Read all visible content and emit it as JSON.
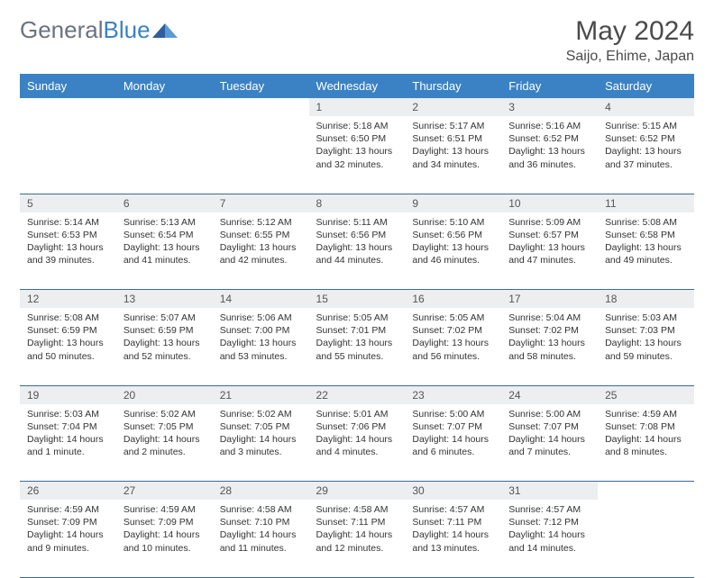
{
  "logo": {
    "text_gray": "General",
    "text_blue": "Blue"
  },
  "title": "May 2024",
  "location": "Saijo, Ehime, Japan",
  "colors": {
    "header_bg": "#3b82c4",
    "header_text": "#ffffff",
    "daynum_bg": "#eceef0",
    "border": "#3b6aa0",
    "body_text": "#333333",
    "logo_gray": "#6b7280",
    "logo_blue": "#3b82c4",
    "page_bg": "#ffffff"
  },
  "day_headers": [
    "Sunday",
    "Monday",
    "Tuesday",
    "Wednesday",
    "Thursday",
    "Friday",
    "Saturday"
  ],
  "weeks": [
    {
      "nums": [
        "",
        "",
        "",
        "1",
        "2",
        "3",
        "4"
      ],
      "cells": [
        null,
        null,
        null,
        {
          "sunrise": "Sunrise: 5:18 AM",
          "sunset": "Sunset: 6:50 PM",
          "day1": "Daylight: 13 hours",
          "day2": "and 32 minutes."
        },
        {
          "sunrise": "Sunrise: 5:17 AM",
          "sunset": "Sunset: 6:51 PM",
          "day1": "Daylight: 13 hours",
          "day2": "and 34 minutes."
        },
        {
          "sunrise": "Sunrise: 5:16 AM",
          "sunset": "Sunset: 6:52 PM",
          "day1": "Daylight: 13 hours",
          "day2": "and 36 minutes."
        },
        {
          "sunrise": "Sunrise: 5:15 AM",
          "sunset": "Sunset: 6:52 PM",
          "day1": "Daylight: 13 hours",
          "day2": "and 37 minutes."
        }
      ]
    },
    {
      "nums": [
        "5",
        "6",
        "7",
        "8",
        "9",
        "10",
        "11"
      ],
      "cells": [
        {
          "sunrise": "Sunrise: 5:14 AM",
          "sunset": "Sunset: 6:53 PM",
          "day1": "Daylight: 13 hours",
          "day2": "and 39 minutes."
        },
        {
          "sunrise": "Sunrise: 5:13 AM",
          "sunset": "Sunset: 6:54 PM",
          "day1": "Daylight: 13 hours",
          "day2": "and 41 minutes."
        },
        {
          "sunrise": "Sunrise: 5:12 AM",
          "sunset": "Sunset: 6:55 PM",
          "day1": "Daylight: 13 hours",
          "day2": "and 42 minutes."
        },
        {
          "sunrise": "Sunrise: 5:11 AM",
          "sunset": "Sunset: 6:56 PM",
          "day1": "Daylight: 13 hours",
          "day2": "and 44 minutes."
        },
        {
          "sunrise": "Sunrise: 5:10 AM",
          "sunset": "Sunset: 6:56 PM",
          "day1": "Daylight: 13 hours",
          "day2": "and 46 minutes."
        },
        {
          "sunrise": "Sunrise: 5:09 AM",
          "sunset": "Sunset: 6:57 PM",
          "day1": "Daylight: 13 hours",
          "day2": "and 47 minutes."
        },
        {
          "sunrise": "Sunrise: 5:08 AM",
          "sunset": "Sunset: 6:58 PM",
          "day1": "Daylight: 13 hours",
          "day2": "and 49 minutes."
        }
      ]
    },
    {
      "nums": [
        "12",
        "13",
        "14",
        "15",
        "16",
        "17",
        "18"
      ],
      "cells": [
        {
          "sunrise": "Sunrise: 5:08 AM",
          "sunset": "Sunset: 6:59 PM",
          "day1": "Daylight: 13 hours",
          "day2": "and 50 minutes."
        },
        {
          "sunrise": "Sunrise: 5:07 AM",
          "sunset": "Sunset: 6:59 PM",
          "day1": "Daylight: 13 hours",
          "day2": "and 52 minutes."
        },
        {
          "sunrise": "Sunrise: 5:06 AM",
          "sunset": "Sunset: 7:00 PM",
          "day1": "Daylight: 13 hours",
          "day2": "and 53 minutes."
        },
        {
          "sunrise": "Sunrise: 5:05 AM",
          "sunset": "Sunset: 7:01 PM",
          "day1": "Daylight: 13 hours",
          "day2": "and 55 minutes."
        },
        {
          "sunrise": "Sunrise: 5:05 AM",
          "sunset": "Sunset: 7:02 PM",
          "day1": "Daylight: 13 hours",
          "day2": "and 56 minutes."
        },
        {
          "sunrise": "Sunrise: 5:04 AM",
          "sunset": "Sunset: 7:02 PM",
          "day1": "Daylight: 13 hours",
          "day2": "and 58 minutes."
        },
        {
          "sunrise": "Sunrise: 5:03 AM",
          "sunset": "Sunset: 7:03 PM",
          "day1": "Daylight: 13 hours",
          "day2": "and 59 minutes."
        }
      ]
    },
    {
      "nums": [
        "19",
        "20",
        "21",
        "22",
        "23",
        "24",
        "25"
      ],
      "cells": [
        {
          "sunrise": "Sunrise: 5:03 AM",
          "sunset": "Sunset: 7:04 PM",
          "day1": "Daylight: 14 hours",
          "day2": "and 1 minute."
        },
        {
          "sunrise": "Sunrise: 5:02 AM",
          "sunset": "Sunset: 7:05 PM",
          "day1": "Daylight: 14 hours",
          "day2": "and 2 minutes."
        },
        {
          "sunrise": "Sunrise: 5:02 AM",
          "sunset": "Sunset: 7:05 PM",
          "day1": "Daylight: 14 hours",
          "day2": "and 3 minutes."
        },
        {
          "sunrise": "Sunrise: 5:01 AM",
          "sunset": "Sunset: 7:06 PM",
          "day1": "Daylight: 14 hours",
          "day2": "and 4 minutes."
        },
        {
          "sunrise": "Sunrise: 5:00 AM",
          "sunset": "Sunset: 7:07 PM",
          "day1": "Daylight: 14 hours",
          "day2": "and 6 minutes."
        },
        {
          "sunrise": "Sunrise: 5:00 AM",
          "sunset": "Sunset: 7:07 PM",
          "day1": "Daylight: 14 hours",
          "day2": "and 7 minutes."
        },
        {
          "sunrise": "Sunrise: 4:59 AM",
          "sunset": "Sunset: 7:08 PM",
          "day1": "Daylight: 14 hours",
          "day2": "and 8 minutes."
        }
      ]
    },
    {
      "nums": [
        "26",
        "27",
        "28",
        "29",
        "30",
        "31",
        ""
      ],
      "cells": [
        {
          "sunrise": "Sunrise: 4:59 AM",
          "sunset": "Sunset: 7:09 PM",
          "day1": "Daylight: 14 hours",
          "day2": "and 9 minutes."
        },
        {
          "sunrise": "Sunrise: 4:59 AM",
          "sunset": "Sunset: 7:09 PM",
          "day1": "Daylight: 14 hours",
          "day2": "and 10 minutes."
        },
        {
          "sunrise": "Sunrise: 4:58 AM",
          "sunset": "Sunset: 7:10 PM",
          "day1": "Daylight: 14 hours",
          "day2": "and 11 minutes."
        },
        {
          "sunrise": "Sunrise: 4:58 AM",
          "sunset": "Sunset: 7:11 PM",
          "day1": "Daylight: 14 hours",
          "day2": "and 12 minutes."
        },
        {
          "sunrise": "Sunrise: 4:57 AM",
          "sunset": "Sunset: 7:11 PM",
          "day1": "Daylight: 14 hours",
          "day2": "and 13 minutes."
        },
        {
          "sunrise": "Sunrise: 4:57 AM",
          "sunset": "Sunset: 7:12 PM",
          "day1": "Daylight: 14 hours",
          "day2": "and 14 minutes."
        },
        null
      ]
    }
  ]
}
